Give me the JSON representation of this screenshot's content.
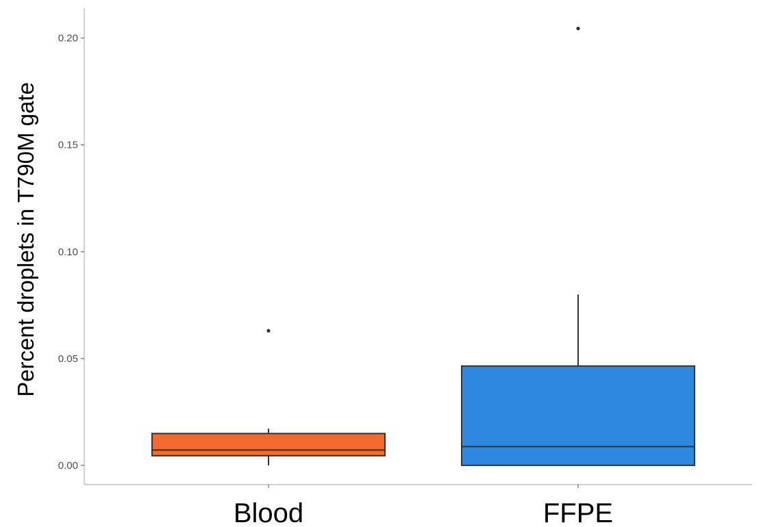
{
  "chart_data": {
    "type": "box",
    "title": "",
    "xlabel": "",
    "ylabel": "Percent droplets in T790M gate",
    "categories": [
      "Blood",
      "FFPE"
    ],
    "ylim": [
      -0.009,
      0.214
    ],
    "yticks": [
      0.0,
      0.05,
      0.1,
      0.15,
      0.2
    ],
    "ytick_labels": [
      "0.00",
      "0.05",
      "0.10",
      "0.15",
      "0.20"
    ],
    "grid": false,
    "legend": "none",
    "boxes": [
      {
        "category": "Blood",
        "color": "#F26A2E",
        "whisker_low": 0.0,
        "q1": 0.0045,
        "median": 0.0072,
        "q3": 0.0149,
        "whisker_high": 0.0172,
        "outliers": [
          0.063
        ]
      },
      {
        "category": "FFPE",
        "color": "#2E88E0",
        "whisker_low": 0.0,
        "q1": 0.0,
        "median": 0.0088,
        "q3": 0.0465,
        "whisker_high": 0.08,
        "outliers": [
          0.2045
        ]
      }
    ]
  }
}
